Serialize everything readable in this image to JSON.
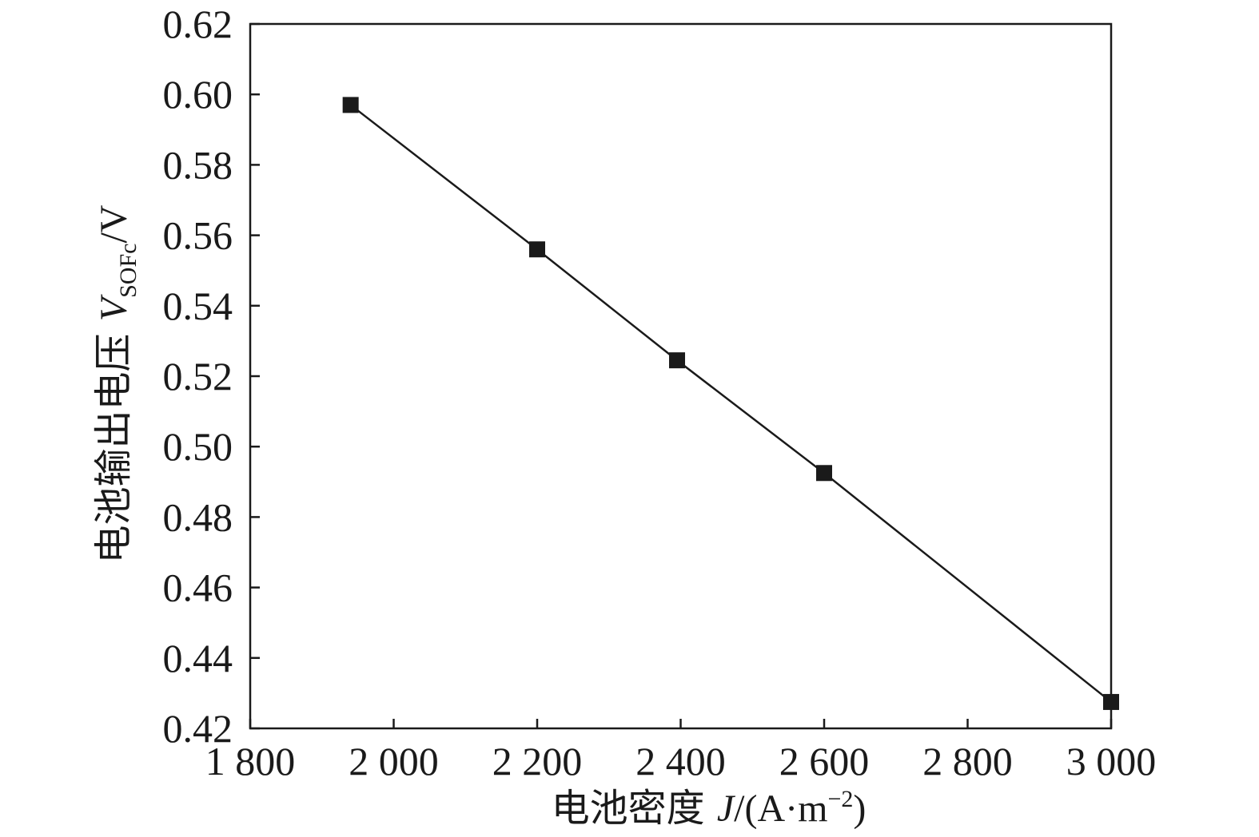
{
  "chart_data": {
    "type": "line",
    "title": "",
    "x": [
      1940,
      2200,
      2395,
      2600,
      3000
    ],
    "series": [
      {
        "values": [
          0.597,
          0.556,
          0.5245,
          0.4925,
          0.4275
        ],
        "marker": "square",
        "color": "#1a1a1a"
      }
    ],
    "xlim": [
      1800,
      3000
    ],
    "ylim": [
      0.42,
      0.62
    ],
    "xticks": [
      1800,
      2000,
      2200,
      2400,
      2600,
      2800,
      3000
    ],
    "xtick_labels": [
      "1 800",
      "2 000",
      "2 200",
      "2 400",
      "2 600",
      "2 800",
      "3 000"
    ],
    "yticks": [
      0.42,
      0.44,
      0.46,
      0.48,
      0.5,
      0.52,
      0.54,
      0.56,
      0.58,
      0.6,
      0.62
    ],
    "ytick_labels": [
      "0.42",
      "0.44",
      "0.46",
      "0.48",
      "0.50",
      "0.52",
      "0.54",
      "0.56",
      "0.58",
      "0.60",
      "0.62"
    ],
    "xlabel": {
      "text": "电池密度 ",
      "var": "J",
      "unit_open": "/(A·m",
      "unit_sup": "−2",
      "unit_close": ")"
    },
    "ylabel": {
      "text": "电池输出电压 ",
      "var": "V",
      "sub": "SOFc",
      "unit": "/V"
    },
    "grid": false,
    "legend": "none"
  }
}
